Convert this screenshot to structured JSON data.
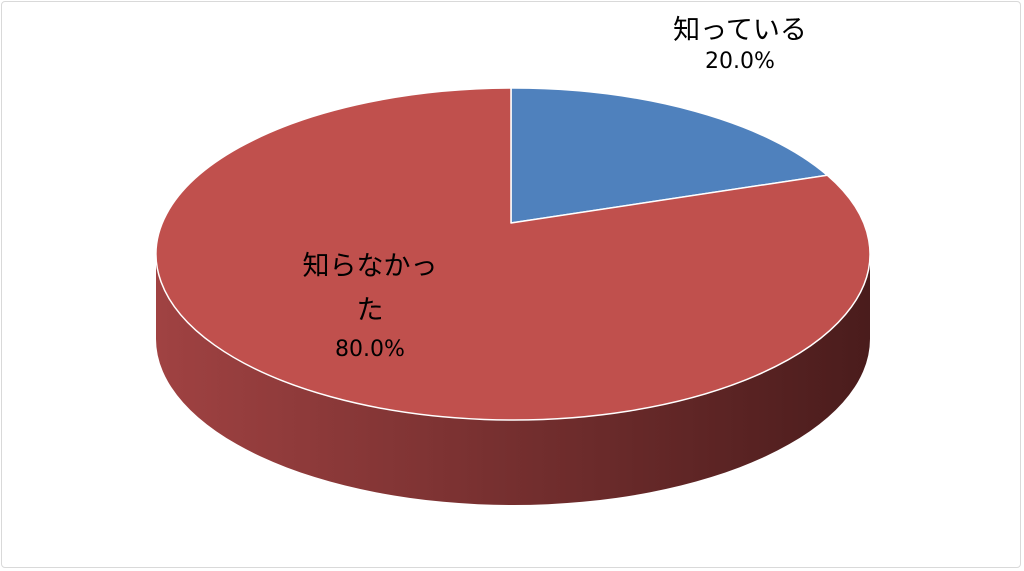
{
  "chart_data": {
    "type": "pie",
    "style": "3d",
    "categories": [
      "知っている",
      "知らなかった"
    ],
    "values": [
      20.0,
      80.0
    ],
    "data_labels": [
      "20.0%",
      "80.0%"
    ],
    "colors": [
      "#4f81bd",
      "#c0504d"
    ],
    "side_colors": [
      "#a04242",
      "#4a1c1c"
    ],
    "legend": "none"
  },
  "labels": {
    "slice0_name": "知っている",
    "slice0_pct": "20.0%",
    "slice1_name_line1": "知らなかっ",
    "slice1_name_line2": "た",
    "slice1_pct": "80.0%"
  }
}
